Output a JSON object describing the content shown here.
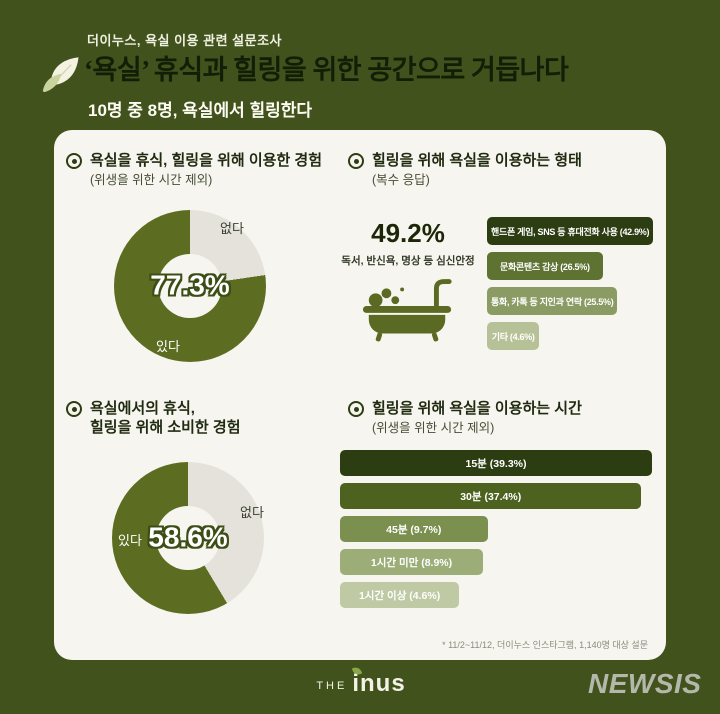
{
  "page": {
    "bg_color": "#42521d",
    "card_color": "#f7f5ef",
    "accent_dark": "#2c3d12",
    "accent_green": "#5c6c20",
    "neutral_gray": "#e4e2db"
  },
  "header": {
    "kicker": "더이누스, 욕실 이용 관련 설문조사",
    "title": "‘욕실’ 휴식과 힐링을 위한 공간으로 거듭나다",
    "subtitle": "10명 중 8명, 욕실에서 힐링한다"
  },
  "sections": {
    "q1": {
      "title": "욕실을 휴식, 힐링을 위해 이용한 경험",
      "subtitle": "(위생을 위한 시간 제외)",
      "value_label": "77.3%",
      "yes_pct": 77.3,
      "no_pct": 22.7,
      "yes_label": "있다",
      "no_label": "없다",
      "colors": {
        "yes": "#5c6c20",
        "no": "#e4e2db"
      }
    },
    "q2": {
      "title": "힐링을 위해 욕실을 이용하는 형태",
      "subtitle": "(복수 응답)",
      "highlight_value": "49.2%",
      "highlight_label": "독서, 반신욕, 명상 등 심신안정",
      "bars": [
        {
          "label": "핸드폰 게임, SNS 등 휴대전화 사용 (42.9%)",
          "value": 42.9,
          "color": "#2c3d12",
          "text": "#ffffff"
        },
        {
          "label": "문화콘텐츠 감상 (26.5%)",
          "value": 26.5,
          "color": "#5e7231",
          "text": "#ffffff"
        },
        {
          "label": "통화, 카톡 등 지인과 연락 (25.5%)",
          "value": 25.5,
          "color": "#8b9b64",
          "text": "#ffffff"
        },
        {
          "label": "기타 (4.6%)",
          "value": 4.6,
          "color": "#b7c198",
          "text": "#ffffff"
        }
      ]
    },
    "q3": {
      "title_line1": "욕실에서의 휴식,",
      "title_line2": "힐링을 위해 소비한 경험",
      "value_label": "58.6%",
      "yes_pct": 58.6,
      "no_pct": 41.4,
      "yes_label": "있다",
      "no_label": "없다",
      "colors": {
        "yes": "#5c6c20",
        "no": "#e4e2db"
      }
    },
    "q4": {
      "title": "힐링을 위해 욕실을 이용하는 시간",
      "subtitle": "(위생을 위한 시간 제외)",
      "bars": [
        {
          "label": "15분 (39.3%)",
          "value": 39.3,
          "color": "#2c3d12",
          "text": "#ffffff"
        },
        {
          "label": "30분 (37.4%)",
          "value": 37.4,
          "color": "#4d621f",
          "text": "#ffffff"
        },
        {
          "label": "45분 (9.7%)",
          "value": 9.7,
          "color": "#7b8f4e",
          "text": "#ffffff"
        },
        {
          "label": "1시간 미만 (8.9%)",
          "value": 8.9,
          "color": "#9cad77",
          "text": "#ffffff"
        },
        {
          "label": "1시간 이상 (4.6%)",
          "value": 4.6,
          "color": "#bfc9a3",
          "text": "#ffffff"
        }
      ]
    }
  },
  "footnote": "* 11/2~11/12, 더이누스 인스타그램, 1,140명 대상 설문",
  "footer": {
    "brand_the": "THE",
    "brand_name": "inus",
    "press": "NEWSIS"
  },
  "chart_data": [
    {
      "type": "pie",
      "title": "욕실을 휴식, 힐링을 위해 이용한 경험 (위생을 위한 시간 제외)",
      "labels": [
        "있다",
        "없다"
      ],
      "values": [
        77.3,
        22.7
      ],
      "unit": "%"
    },
    {
      "type": "bar",
      "title": "힐링을 위해 욕실을 이용하는 형태 (복수 응답)",
      "categories": [
        "독서, 반신욕, 명상 등 심신안정",
        "핸드폰 게임, SNS 등 휴대전화 사용",
        "문화콘텐츠 감상",
        "통화, 카톡 등 지인과 연락",
        "기타"
      ],
      "values": [
        49.2,
        42.9,
        26.5,
        25.5,
        4.6
      ],
      "unit": "%",
      "orientation": "horizontal"
    },
    {
      "type": "pie",
      "title": "욕실에서의 휴식, 힐링을 위해 소비한 경험",
      "labels": [
        "있다",
        "없다"
      ],
      "values": [
        58.6,
        41.4
      ],
      "unit": "%"
    },
    {
      "type": "bar",
      "title": "힐링을 위해 욕실을 이용하는 시간 (위생을 위한 시간 제외)",
      "categories": [
        "15분",
        "30분",
        "45분",
        "1시간 미만",
        "1시간 이상"
      ],
      "values": [
        39.3,
        37.4,
        9.7,
        8.9,
        4.6
      ],
      "unit": "%",
      "orientation": "horizontal"
    }
  ]
}
